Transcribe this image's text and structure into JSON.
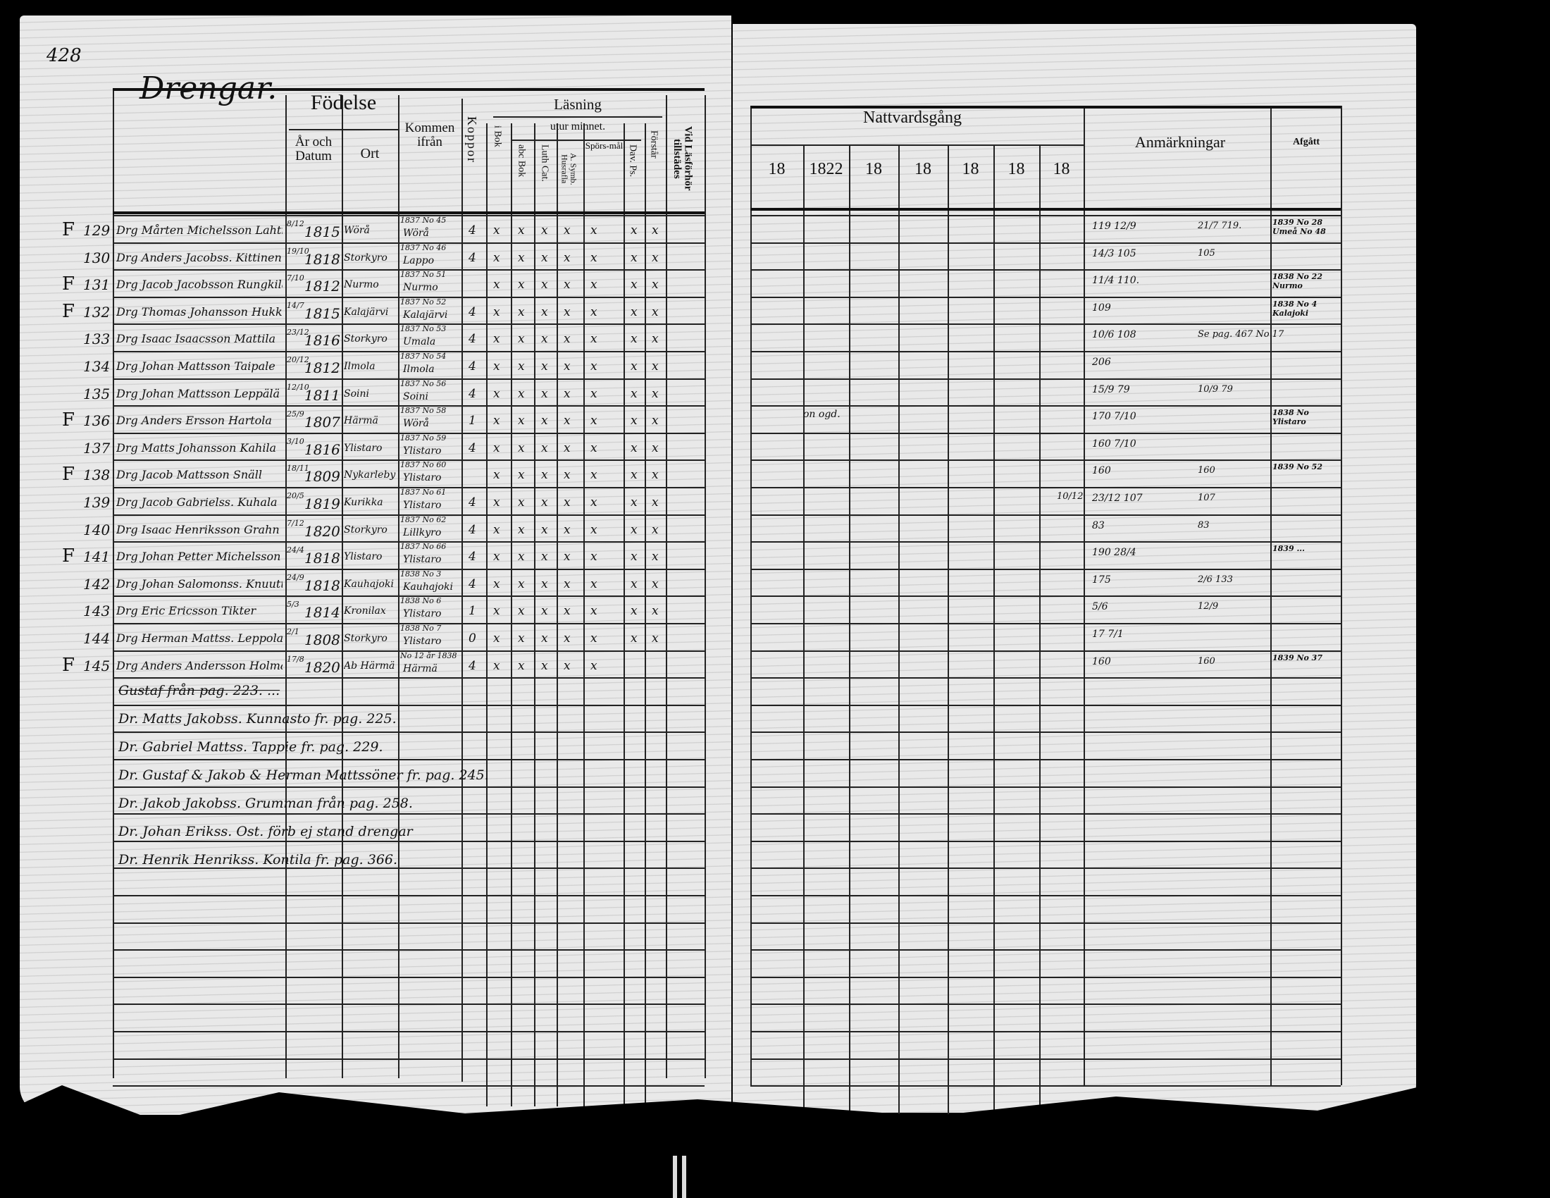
{
  "page_number": "428",
  "section_title": "Drengar.",
  "left_headers": {
    "fodelse": "Födelse",
    "ar_och_datum": "År och Datum",
    "ort": "Ort",
    "kommen_ifran": "Kommen ifrån",
    "koppor": "Koppor",
    "lasning": "Läsning",
    "i_bok": "i Bok",
    "utur_minnet": "utur minnet.",
    "abc_bok": "abc Bok",
    "luth_cat": "Luth Cat.",
    "a_symb": "A. Symb. Husrafla",
    "sporsmal": "Spörs-mål",
    "dav_ps": "Dav. Ps.",
    "forstar": "Förstår",
    "vid_lasforhor": "Vid Läsförhör tillstädes"
  },
  "right_headers": {
    "nattvardsgang": "Nattvardsgång",
    "years": [
      "18",
      "1822",
      "18",
      "18",
      "18",
      "18",
      "18"
    ],
    "anmarkningar": "Anmärkningar",
    "afgatt": "Afgått"
  },
  "rows": [
    {
      "no": "129",
      "flag": "F",
      "name": "Drg Mårten Michelsson Lahti",
      "date": "8/12",
      "year": "1815",
      "ort": "Wörå",
      "kommen_no": "1837 No 45",
      "kommen": "Wörå",
      "marks": [
        "4",
        "x",
        "x",
        "x",
        "x",
        "x",
        "x",
        "x"
      ],
      "vid": "",
      "anm": "119 12/9",
      "anm2": "21/7  719.",
      "afg": "1839 No 28 Umeå No 48"
    },
    {
      "no": "130",
      "flag": "",
      "name": "Drg Anders Jacobss. Kittinen",
      "date": "19/10",
      "year": "1818",
      "ort": "Storkyro",
      "kommen_no": "1837 No 46",
      "kommen": "Lappo",
      "marks": [
        "4",
        "x",
        "x",
        "x",
        "x",
        "x",
        "x",
        "x"
      ],
      "vid": "",
      "anm": "14/3 105",
      "anm2": "105",
      "afg": ""
    },
    {
      "no": "131",
      "flag": "F",
      "name": "Drg Jacob Jacobsson Rungkilä",
      "date": "7/10",
      "year": "1812",
      "ort": "Nurmo",
      "kommen_no": "1837 No 51",
      "kommen": "Nurmo",
      "marks": [
        "",
        "x",
        "x",
        "x",
        "x",
        "x",
        "x",
        "x"
      ],
      "vid": "",
      "anm": "11/4 110.",
      "anm2": "",
      "afg": "1838 No 22 Nurmo"
    },
    {
      "no": "132",
      "flag": "F",
      "name": "Drg Thomas Johansson Hukkakallio",
      "date": "14/7",
      "year": "1815",
      "ort": "Kalajärvi",
      "kommen_no": "1837 No 52",
      "kommen": "Kalajärvi",
      "marks": [
        "4",
        "x",
        "x",
        "x",
        "x",
        "x",
        "x",
        "x"
      ],
      "vid": "",
      "anm": "109",
      "anm2": "",
      "afg": "1838 No 4 Kalajoki"
    },
    {
      "no": "133",
      "flag": "",
      "name": "Drg Isaac Isaacsson Mattila",
      "date": "23/12",
      "year": "1816",
      "ort": "Storkyro",
      "kommen_no": "1837 No 53",
      "kommen": "Umala",
      "marks": [
        "4",
        "x",
        "x",
        "x",
        "x",
        "x",
        "x",
        "x"
      ],
      "vid": "",
      "anm": "10/6 108",
      "anm2": "Se pag. 467 No 17",
      "afg": ""
    },
    {
      "no": "134",
      "flag": "",
      "name": "Drg Johan Mattsson Taipale",
      "date": "20/12",
      "year": "1812",
      "ort": "Ilmola",
      "kommen_no": "1837 No 54",
      "kommen": "Ilmola",
      "marks": [
        "4",
        "x",
        "x",
        "x",
        "x",
        "x",
        "x",
        "x"
      ],
      "vid": "",
      "anm": "206",
      "anm2": "",
      "afg": ""
    },
    {
      "no": "135",
      "flag": "",
      "name": "Drg Johan Mattsson Leppälä",
      "date": "12/10",
      "year": "1811",
      "ort": "Soini",
      "kommen_no": "1837 No 56",
      "kommen": "Soini",
      "marks": [
        "4",
        "x",
        "x",
        "x",
        "x",
        "x",
        "x",
        "x"
      ],
      "vid": "",
      "anm": "15/9 79",
      "anm2": "10/9 79",
      "afg": ""
    },
    {
      "no": "136",
      "flag": "F",
      "name": "Drg Anders Ersson Hartola",
      "date": "25/9",
      "year": "1807",
      "ort": "Härmä",
      "kommen_no": "1837 No 58",
      "kommen": "Wörå",
      "marks": [
        "1",
        "x",
        "x",
        "x",
        "x",
        "x",
        "x",
        "x"
      ],
      "vid": "",
      "anm": "170 7/10",
      "anm2": "",
      "afg": "1838 No Ylistaro"
    },
    {
      "no": "137",
      "flag": "",
      "name": "Drg Matts Johansson Kahila",
      "date": "3/10",
      "year": "1816",
      "ort": "Ylistaro",
      "kommen_no": "1837 No 59",
      "kommen": "Ylistaro",
      "marks": [
        "4",
        "x",
        "x",
        "x",
        "x",
        "x",
        "x",
        "x"
      ],
      "vid": "",
      "anm": "160 7/10",
      "anm2": "",
      "afg": ""
    },
    {
      "no": "138",
      "flag": "F",
      "name": "Drg Jacob Mattsson Snäll",
      "date": "18/11",
      "year": "1809",
      "ort": "Nykarleby",
      "kommen_no": "1837 No 60",
      "kommen": "Ylistaro",
      "marks": [
        "",
        "x",
        "x",
        "x",
        "x",
        "x",
        "x",
        "x"
      ],
      "vid": "",
      "anm": "160",
      "anm2": "160",
      "afg": "1839 No 52"
    },
    {
      "no": "139",
      "flag": "",
      "name": "Drg Jacob Gabrielss. Kuhala",
      "date": "20/5",
      "year": "1819",
      "ort": "Kurikka",
      "kommen_no": "1837 No 61",
      "kommen": "Ylistaro",
      "marks": [
        "4",
        "x",
        "x",
        "x",
        "x",
        "x",
        "x",
        "x"
      ],
      "vid": "",
      "anm": "23/12 107",
      "anm2": "107",
      "afg": "",
      "natt": "10/12"
    },
    {
      "no": "140",
      "flag": "",
      "name": "Drg Isaac Henriksson Grahn",
      "date": "7/12",
      "year": "1820",
      "ort": "Storkyro",
      "kommen_no": "1837 No 62",
      "kommen": "Lillkyro",
      "marks": [
        "4",
        "x",
        "x",
        "x",
        "x",
        "x",
        "x",
        "x"
      ],
      "vid": "",
      "anm": "83",
      "anm2": "83",
      "afg": ""
    },
    {
      "no": "141",
      "flag": "F",
      "name": "Drg Johan Petter Michelsson Rakala",
      "date": "24/4",
      "year": "1818",
      "ort": "Ylistaro",
      "kommen_no": "1837 No 66",
      "kommen": "Ylistaro",
      "marks": [
        "4",
        "x",
        "x",
        "x",
        "x",
        "x",
        "x",
        "x"
      ],
      "vid": "",
      "anm": "190 28/4",
      "anm2": "",
      "afg": "1839 ..."
    },
    {
      "no": "142",
      "flag": "",
      "name": "Drg Johan Salomonss. Knuuttila",
      "date": "24/9",
      "year": "1818",
      "ort": "Kauhajoki",
      "kommen_no": "1838 No 3",
      "kommen": "Kauhajoki",
      "marks": [
        "4",
        "x",
        "x",
        "x",
        "x",
        "x",
        "x",
        "x"
      ],
      "vid": "",
      "anm": "175",
      "anm2": "2/6  133",
      "afg": ""
    },
    {
      "no": "143",
      "flag": "",
      "name": "Drg Eric Ericsson Tikter",
      "date": "5/3",
      "year": "1814",
      "ort": "Kronilax",
      "kommen_no": "1838 No 6",
      "kommen": "Ylistaro",
      "marks": [
        "1",
        "x",
        "x",
        "x",
        "x",
        "x",
        "x",
        "x"
      ],
      "vid": "",
      "anm": "5/6",
      "anm2": "12/9",
      "afg": ""
    },
    {
      "no": "144",
      "flag": "",
      "name": "Drg Herman Mattss. Leppola",
      "date": "2/1",
      "year": "1808",
      "ort": "Storkyro",
      "kommen_no": "1838 No 7",
      "kommen": "Ylistaro",
      "marks": [
        "0",
        "x",
        "x",
        "x",
        "x",
        "x",
        "x",
        "x"
      ],
      "vid": "",
      "anm": "17 7/1",
      "anm2": "",
      "afg": ""
    },
    {
      "no": "145",
      "flag": "F",
      "name": "Drg Anders Andersson Holma",
      "date": "17/8",
      "year": "1820",
      "ort": "Ab Härmä",
      "kommen_no": "No 12 år 1838",
      "kommen": "Härmä",
      "marks": [
        "4",
        "x",
        "x",
        "x",
        "x",
        "x",
        "",
        ""
      ],
      "vid": "",
      "anm": "160",
      "anm2": "160",
      "afg": "1839 No 37"
    }
  ],
  "additions": [
    "Gustaf från pag. 223. ...",
    "Dr. Matts Jakobss. Kunnasto fr. pag. 225.",
    "Dr. Gabriel Mattss. Tappie fr. pag. 229.",
    "Dr. Gustaf & Jakob & Herman Mattssöner fr. pag. 245.",
    "Dr. Jakob Jakobss. Grumman från pag. 258.",
    "Dr. Johan Erikss. Ost. förb ej stand drengar",
    "Dr. Henrik Henrikss. Kontila fr. pag. 366."
  ],
  "right_notes": [
    "on ogd."
  ]
}
